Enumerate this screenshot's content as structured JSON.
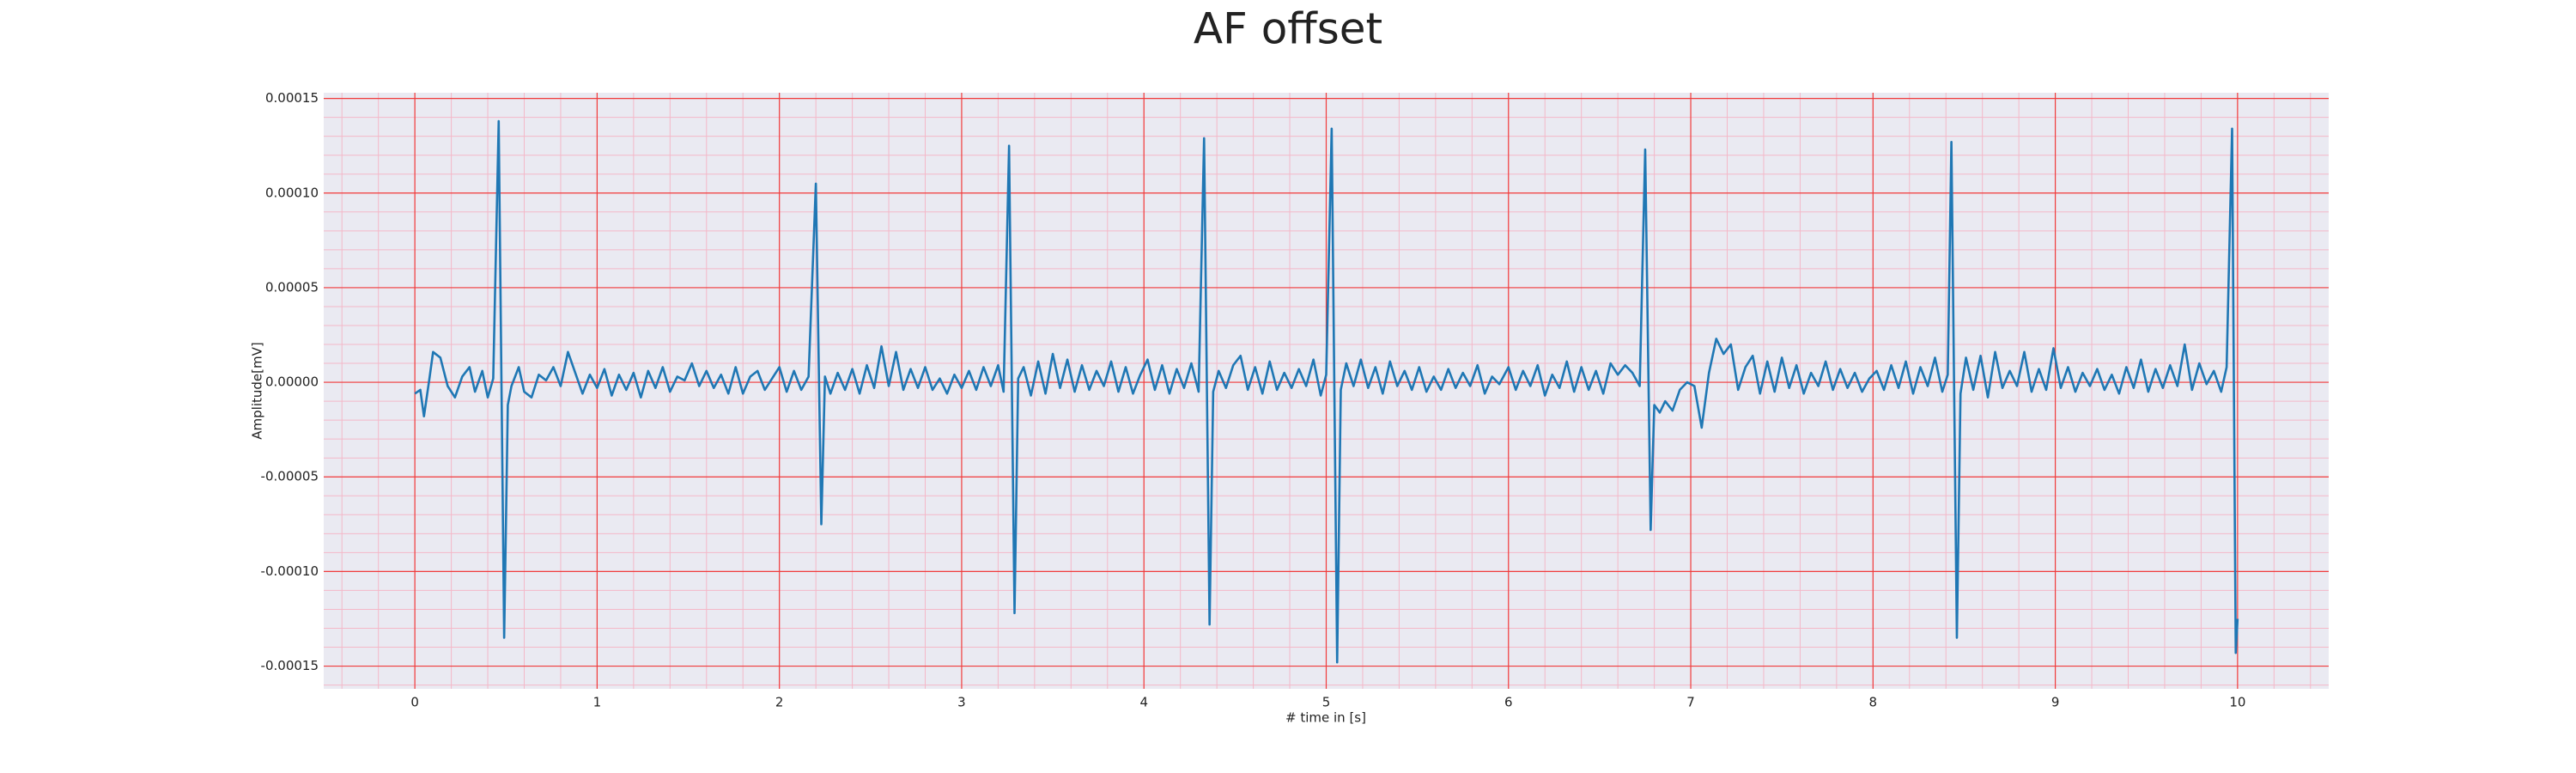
{
  "chart_data": {
    "type": "line",
    "title": "AF offset",
    "xlabel": "# time in [s]",
    "ylabel": "Amplitude[mV]",
    "color": "#1f77b4",
    "x": [
      0,
      0.03,
      0.05,
      0.08,
      0.1,
      0.14,
      0.18,
      0.22,
      0.26,
      0.3,
      0.33,
      0.37,
      0.4,
      0.43,
      0.46,
      0.49,
      0.51,
      0.53,
      0.57,
      0.6,
      0.64,
      0.68,
      0.72,
      0.76,
      0.8,
      0.84,
      0.88,
      0.92,
      0.96,
      1.0,
      1.04,
      1.08,
      1.12,
      1.16,
      1.2,
      1.24,
      1.28,
      1.32,
      1.36,
      1.4,
      1.44,
      1.48,
      1.52,
      1.56,
      1.6,
      1.64,
      1.68,
      1.72,
      1.76,
      1.8,
      1.84,
      1.88,
      1.92,
      1.96,
      2.0,
      2.04,
      2.08,
      2.12,
      2.16,
      2.2,
      2.23,
      2.25,
      2.28,
      2.32,
      2.36,
      2.4,
      2.44,
      2.48,
      2.52,
      2.56,
      2.6,
      2.64,
      2.68,
      2.72,
      2.76,
      2.8,
      2.84,
      2.88,
      2.92,
      2.96,
      3.0,
      3.04,
      3.08,
      3.12,
      3.16,
      3.2,
      3.23,
      3.26,
      3.29,
      3.31,
      3.34,
      3.38,
      3.42,
      3.46,
      3.5,
      3.54,
      3.58,
      3.62,
      3.66,
      3.7,
      3.74,
      3.78,
      3.82,
      3.86,
      3.9,
      3.94,
      3.98,
      4.02,
      4.06,
      4.1,
      4.14,
      4.18,
      4.22,
      4.26,
      4.3,
      4.33,
      4.36,
      4.38,
      4.41,
      4.45,
      4.49,
      4.53,
      4.57,
      4.61,
      4.65,
      4.69,
      4.73,
      4.77,
      4.81,
      4.85,
      4.89,
      4.93,
      4.97,
      5.0,
      5.03,
      5.06,
      5.08,
      5.11,
      5.15,
      5.19,
      5.23,
      5.27,
      5.31,
      5.35,
      5.39,
      5.43,
      5.47,
      5.51,
      5.55,
      5.59,
      5.63,
      5.67,
      5.71,
      5.75,
      5.79,
      5.83,
      5.87,
      5.91,
      5.95,
      6.0,
      6.04,
      6.08,
      6.12,
      6.16,
      6.2,
      6.24,
      6.28,
      6.32,
      6.36,
      6.4,
      6.44,
      6.48,
      6.52,
      6.56,
      6.6,
      6.64,
      6.68,
      6.72,
      6.75,
      6.78,
      6.8,
      6.83,
      6.86,
      6.9,
      6.94,
      6.98,
      7.02,
      7.06,
      7.1,
      7.14,
      7.18,
      7.22,
      7.26,
      7.3,
      7.34,
      7.38,
      7.42,
      7.46,
      7.5,
      7.54,
      7.58,
      7.62,
      7.66,
      7.7,
      7.74,
      7.78,
      7.82,
      7.86,
      7.9,
      7.94,
      7.98,
      8.02,
      8.06,
      8.1,
      8.14,
      8.18,
      8.22,
      8.26,
      8.3,
      8.34,
      8.38,
      8.41,
      8.43,
      8.46,
      8.48,
      8.51,
      8.55,
      8.59,
      8.63,
      8.67,
      8.71,
      8.75,
      8.79,
      8.83,
      8.87,
      8.91,
      8.95,
      8.99,
      9.03,
      9.07,
      9.11,
      9.15,
      9.19,
      9.23,
      9.27,
      9.31,
      9.35,
      9.39,
      9.43,
      9.47,
      9.51,
      9.55,
      9.59,
      9.63,
      9.67,
      9.71,
      9.75,
      9.79,
      9.83,
      9.87,
      9.91,
      9.94,
      9.97,
      9.99,
      10.0
    ],
    "values": [
      -6e-06,
      -4e-06,
      -1.8e-05,
      2e-06,
      1.6e-05,
      1.3e-05,
      -2e-06,
      -8e-06,
      3e-06,
      8e-06,
      -5e-06,
      6e-06,
      -8e-06,
      2e-06,
      0.000138,
      -0.000135,
      -1.2e-05,
      -2e-06,
      8e-06,
      -5e-06,
      -8e-06,
      4e-06,
      1e-06,
      8e-06,
      -2e-06,
      1.6e-05,
      5e-06,
      -6e-06,
      4e-06,
      -3e-06,
      7e-06,
      -7e-06,
      4e-06,
      -4e-06,
      5e-06,
      -8e-06,
      6e-06,
      -3e-06,
      8e-06,
      -5e-06,
      3e-06,
      1e-06,
      1e-05,
      -2e-06,
      6e-06,
      -3e-06,
      4e-06,
      -6e-06,
      8e-06,
      -6e-06,
      3e-06,
      6e-06,
      -4e-06,
      2e-06,
      8e-06,
      -5e-06,
      6e-06,
      -4e-06,
      3e-06,
      0.000105,
      -7.5e-05,
      3e-06,
      -6e-06,
      5e-06,
      -4e-06,
      7e-06,
      -6e-06,
      9e-06,
      -3e-06,
      1.9e-05,
      -2e-06,
      1.6e-05,
      -4e-06,
      7e-06,
      -3e-06,
      8e-06,
      -4e-06,
      2e-06,
      -6e-06,
      4e-06,
      -3e-06,
      6e-06,
      -4e-06,
      8e-06,
      -2e-06,
      9e-06,
      -5e-06,
      0.000125,
      -0.000122,
      2e-06,
      8e-06,
      -7e-06,
      1.1e-05,
      -6e-06,
      1.5e-05,
      -3e-06,
      1.2e-05,
      -5e-06,
      9e-06,
      -4e-06,
      6e-06,
      -2e-06,
      1.1e-05,
      -5e-06,
      8e-06,
      -6e-06,
      4e-06,
      1.2e-05,
      -4e-06,
      9e-06,
      -6e-06,
      7e-06,
      -3e-06,
      1e-05,
      -5e-06,
      0.000129,
      -0.000128,
      -5e-06,
      6e-06,
      -3e-06,
      9e-06,
      1.4e-05,
      -4e-06,
      8e-06,
      -6e-06,
      1.1e-05,
      -4e-06,
      5e-06,
      -3e-06,
      7e-06,
      -2e-06,
      1.2e-05,
      -7e-06,
      4e-06,
      0.000134,
      -0.000148,
      -4e-06,
      1e-05,
      -2e-06,
      1.2e-05,
      -3e-06,
      8e-06,
      -6e-06,
      1.1e-05,
      -2e-06,
      6e-06,
      -4e-06,
      8e-06,
      -5e-06,
      3e-06,
      -4e-06,
      7e-06,
      -3e-06,
      5e-06,
      -2e-06,
      9e-06,
      -6e-06,
      3e-06,
      -1e-06,
      8e-06,
      -4e-06,
      6e-06,
      -2e-06,
      9e-06,
      -7e-06,
      4e-06,
      -3e-06,
      1.1e-05,
      -5e-06,
      8e-06,
      -4e-06,
      6e-06,
      -6e-06,
      1e-05,
      4e-06,
      9e-06,
      5e-06,
      -2e-06,
      0.000123,
      -7.8e-05,
      -1.2e-05,
      -1.6e-05,
      -1e-05,
      -1.5e-05,
      -4e-06,
      0,
      -2e-06,
      -2.4e-05,
      5e-06,
      2.3e-05,
      1.5e-05,
      2e-05,
      -4e-06,
      8e-06,
      1.4e-05,
      -6e-06,
      1.1e-05,
      -5e-06,
      1.3e-05,
      -3e-06,
      9e-06,
      -6e-06,
      5e-06,
      -2e-06,
      1.1e-05,
      -4e-06,
      7e-06,
      -3e-06,
      5e-06,
      -5e-06,
      2e-06,
      6e-06,
      -4e-06,
      9e-06,
      -3e-06,
      1.1e-05,
      -6e-06,
      8e-06,
      -2e-06,
      1.3e-05,
      -5e-06,
      4e-06,
      0.000127,
      -0.000135,
      -6e-06,
      1.3e-05,
      -4e-06,
      1.4e-05,
      -8e-06,
      1.6e-05,
      -3e-06,
      6e-06,
      -2e-06,
      1.6e-05,
      -5e-06,
      7e-06,
      -4e-06,
      1.8e-05,
      -3e-06,
      8e-06,
      -5e-06,
      5e-06,
      -2e-06,
      7e-06,
      -4e-06,
      4e-06,
      -6e-06,
      8e-06,
      -3e-06,
      1.2e-05,
      -5e-06,
      7e-06,
      -3e-06,
      9e-06,
      -2e-06,
      2e-05,
      -4e-06,
      1e-05,
      -1e-06,
      6e-06,
      -5e-06,
      8e-06,
      0.000134,
      -0.000143,
      -0.000125
    ],
    "xlim": [
      -0.5,
      10.5
    ],
    "ylim": [
      -0.000162,
      0.000153
    ],
    "xticks": [
      0,
      1,
      2,
      3,
      4,
      5,
      6,
      7,
      8,
      9,
      10
    ],
    "yticks": [
      {
        "value": -0.00015,
        "label": "-0.00015"
      },
      {
        "value": -0.0001,
        "label": "-0.00010"
      },
      {
        "value": -5e-05,
        "label": "-0.00005"
      },
      {
        "value": 0,
        "label": "0.00000"
      },
      {
        "value": 5e-05,
        "label": "0.00005"
      },
      {
        "value": 0.0001,
        "label": "0.00010"
      },
      {
        "value": 0.00015,
        "label": "0.00015"
      }
    ],
    "grid": true,
    "minor_grid": 5
  }
}
